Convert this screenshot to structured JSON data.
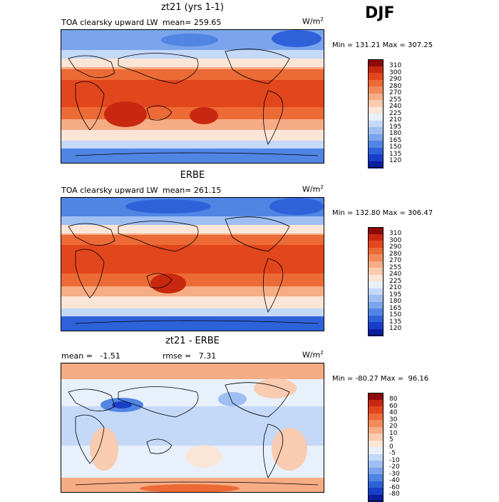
{
  "season": "DJF",
  "panels": [
    {
      "title": "zt21 (yrs 1-1)",
      "variable": "TOA clearsky upward LW",
      "mean_text": "mean= 259.65",
      "unit_base": "W/m",
      "unit_exp": "2",
      "minmax": "Min = 131.21 Max = 307.25",
      "kind": "abs"
    },
    {
      "title": "ERBE",
      "variable": "TOA clearsky upward LW",
      "mean_text": "mean= 261.15",
      "unit_base": "W/m",
      "unit_exp": "2",
      "minmax": "Min = 132.80 Max = 306.47",
      "kind": "abs"
    },
    {
      "title": "zt21 - ERBE",
      "mean_text": "mean =   -1.51",
      "rmse_text": "rmse =   7.31",
      "unit_base": "W/m",
      "unit_exp": "2",
      "minmax": "Min = -80.27 Max =  96.16",
      "kind": "diff"
    }
  ],
  "colorbar_abs": {
    "labels": [
      "310",
      "300",
      "290",
      "280",
      "270",
      "255",
      "240",
      "225",
      "210",
      "195",
      "180",
      "165",
      "150",
      "135",
      "120"
    ],
    "colors": [
      "#8c0b0b",
      "#c8280f",
      "#e2461c",
      "#ec6a36",
      "#f28a5a",
      "#f6ac85",
      "#f9cbb0",
      "#fbe5d6",
      "#e8f0fb",
      "#c4d8f7",
      "#9fbff2",
      "#7aa4ec",
      "#5185e4",
      "#2f62d9",
      "#1a3fc7",
      "#0a1f9e"
    ]
  },
  "colorbar_diff": {
    "labels": [
      "80",
      "60",
      "40",
      "30",
      "20",
      "10",
      "5",
      "0",
      "-5",
      "-10",
      "-20",
      "-30",
      "-40",
      "-60",
      "-80"
    ],
    "colors": [
      "#8c0b0b",
      "#c8280f",
      "#e2461c",
      "#ec6a36",
      "#f28a5a",
      "#f6ac85",
      "#f9cbb0",
      "#fbe5d6",
      "#e8f0fb",
      "#c4d8f7",
      "#9fbff2",
      "#7aa4ec",
      "#5185e4",
      "#2f62d9",
      "#1a3fc7",
      "#0a1f9e"
    ]
  }
}
